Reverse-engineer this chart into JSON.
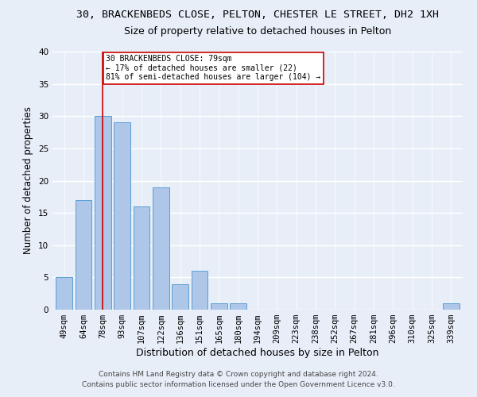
{
  "title1": "30, BRACKENBEDS CLOSE, PELTON, CHESTER LE STREET, DH2 1XH",
  "title2": "Size of property relative to detached houses in Pelton",
  "xlabel": "Distribution of detached houses by size in Pelton",
  "ylabel": "Number of detached properties",
  "categories": [
    "49sqm",
    "64sqm",
    "78sqm",
    "93sqm",
    "107sqm",
    "122sqm",
    "136sqm",
    "151sqm",
    "165sqm",
    "180sqm",
    "194sqm",
    "209sqm",
    "223sqm",
    "238sqm",
    "252sqm",
    "267sqm",
    "281sqm",
    "296sqm",
    "310sqm",
    "325sqm",
    "339sqm"
  ],
  "values": [
    5,
    17,
    30,
    29,
    16,
    19,
    4,
    6,
    1,
    1,
    0,
    0,
    0,
    0,
    0,
    0,
    0,
    0,
    0,
    0,
    1
  ],
  "bar_color": "#aec6e8",
  "bar_edge_color": "#5a9fd4",
  "highlight_index": 2,
  "highlight_color": "#cc0000",
  "ylim": [
    0,
    40
  ],
  "yticks": [
    0,
    5,
    10,
    15,
    20,
    25,
    30,
    35,
    40
  ],
  "annotation_box_text": "30 BRACKENBEDS CLOSE: 79sqm\n← 17% of detached houses are smaller (22)\n81% of semi-detached houses are larger (104) →",
  "annotation_box_color": "#cc0000",
  "annotation_box_bg": "#ffffff",
  "footer1": "Contains HM Land Registry data © Crown copyright and database right 2024.",
  "footer2": "Contains public sector information licensed under the Open Government Licence v3.0.",
  "bg_color": "#e8eef8",
  "grid_color": "#ffffff",
  "title1_fontsize": 9.5,
  "title2_fontsize": 9,
  "xlabel_fontsize": 9,
  "ylabel_fontsize": 8.5,
  "tick_fontsize": 7.5,
  "footer_fontsize": 6.5
}
